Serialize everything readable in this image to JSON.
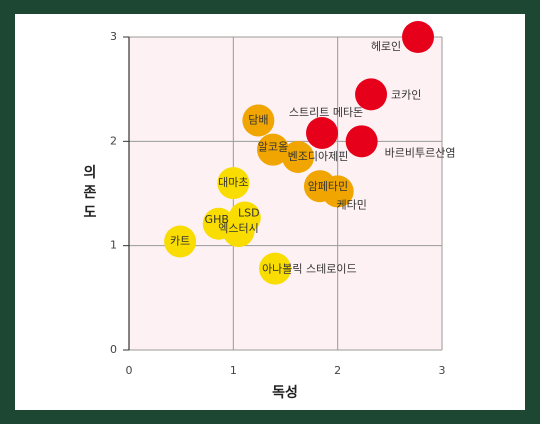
{
  "chart_data": {
    "type": "scatter",
    "x_label": "독성",
    "y_label": "의존도",
    "labels": [
      "헤로인",
      "코카인",
      "스트리트 메타돈",
      "바르비투르산염",
      "담배",
      "알코올",
      "벤조디아제핀",
      "암페타민",
      "케타민",
      "대마초",
      "LSD",
      "GHB",
      "엑스터시",
      "카트",
      "아나볼릭 스테로이드"
    ],
    "x": [
      2.77,
      2.32,
      1.85,
      2.23,
      1.24,
      1.38,
      1.62,
      1.83,
      2.0,
      1.0,
      1.11,
      0.86,
      1.05,
      0.49,
      1.4
    ],
    "values": [
      3.0,
      2.45,
      2.08,
      2.0,
      2.2,
      1.92,
      1.85,
      1.57,
      1.52,
      1.6,
      1.27,
      1.21,
      1.14,
      1.04,
      0.78
    ],
    "colors": [
      "#e60019",
      "#e60019",
      "#e60019",
      "#e60019",
      "#f0a500",
      "#f0a500",
      "#f0a500",
      "#f0a500",
      "#f0a500",
      "#f9dc00",
      "#f9dc00",
      "#f9dc00",
      "#f9dc00",
      "#f9dc00",
      "#f9dc00"
    ],
    "xlim": [
      0,
      3
    ],
    "ylim": [
      0,
      3
    ],
    "xticks": [
      0,
      1,
      2,
      3
    ],
    "yticks": [
      0,
      1,
      2,
      3
    ],
    "grid": true
  }
}
